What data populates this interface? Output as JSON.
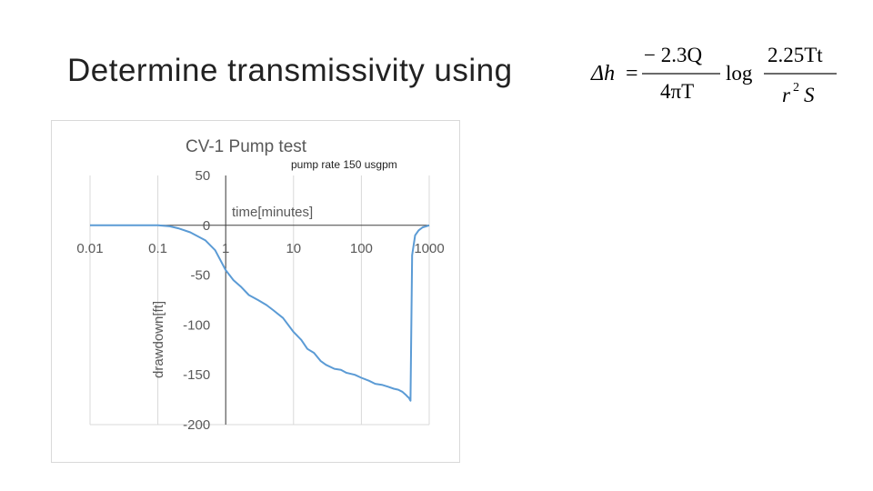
{
  "slide": {
    "title": "Determine transmissivity using"
  },
  "formula": {
    "lhs": "Δh",
    "equals": "=",
    "fraction1_numerator": "− 2.3Q",
    "fraction1_denominator": "4πT",
    "log": "log",
    "fraction2_numerator": "2.25Tt",
    "fraction2_denominator_base": "r",
    "fraction2_denominator_exp": "2",
    "fraction2_denominator_tail": "S"
  },
  "chart_data": {
    "type": "line",
    "title": "CV-1 Pump test",
    "annotation": "pump rate 150 usgpm",
    "xlabel": "time[minutes]",
    "ylabel": "drawdown[ft]",
    "xscale": "log",
    "xlim": [
      0.01,
      1000
    ],
    "ylim": [
      -200,
      50
    ],
    "xticks": [
      0.01,
      0.1,
      1,
      10,
      100,
      1000
    ],
    "xtick_labels": [
      "0.01",
      "0.1",
      "1",
      "10",
      "100",
      "1000"
    ],
    "yticks": [
      50,
      0,
      -50,
      -100,
      -150,
      -200
    ],
    "ytick_labels": [
      "50",
      "0",
      "-50",
      "-100",
      "-150",
      "-200"
    ],
    "grid": "vertical gridlines at decades",
    "legend": "none",
    "line_color": "#5b9bd5",
    "series": [
      {
        "x": [
          0.01,
          0.02,
          0.05,
          0.1,
          0.15,
          0.2,
          0.3,
          0.5,
          0.7,
          1.0,
          1.3,
          1.7,
          2.2,
          3,
          4,
          5,
          7,
          10,
          13,
          16,
          20,
          25,
          30,
          40,
          50,
          60,
          80,
          100,
          130,
          160,
          200,
          250,
          300,
          350,
          400,
          450,
          480,
          500,
          510,
          530,
          560,
          620,
          700,
          800,
          900,
          1000
        ],
        "y": [
          0,
          0,
          0,
          0,
          -1,
          -3,
          -7,
          -15,
          -25,
          -45,
          -55,
          -62,
          -70,
          -75,
          -80,
          -85,
          -93,
          -107,
          -115,
          -124,
          -128,
          -136,
          -140,
          -144,
          -145,
          -148,
          -150,
          -153,
          -156,
          -159,
          -160,
          -162,
          -164,
          -165,
          -167,
          -170,
          -172,
          -173,
          -174,
          -176,
          -30,
          -10,
          -5,
          -2,
          -1,
          0
        ]
      }
    ]
  }
}
